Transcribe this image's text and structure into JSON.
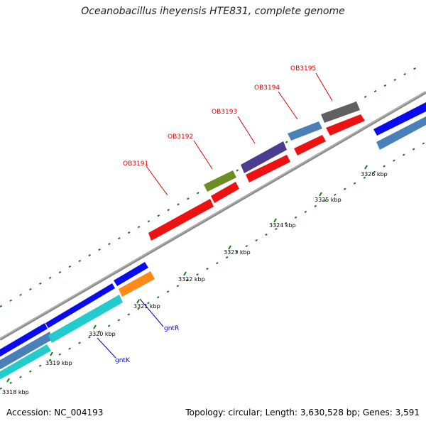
{
  "title": "Oceanobacillus iheyensis HTE831, complete genome",
  "footer": {
    "accession": "Accession: NC_004193",
    "summary": "Topology: circular; Length: 3,630,528 bp; Genes: 3,591"
  },
  "axis": {
    "unit": "kbp",
    "ticks": [
      "3318 kbp",
      "3319 kbp",
      "3320 kbp",
      "3321 kbp",
      "3322 kbp",
      "3323 kbp",
      "3324 kbp",
      "3325 kbp",
      "3326 kbp"
    ]
  },
  "genes": {
    "OB3191": "OB3191",
    "OB3192": "OB3192",
    "OB3193": "OB3193",
    "OB3194": "OB3194",
    "OB3195": "OB3195",
    "gntR": "gntR",
    "gntK": "gntK"
  },
  "colors": {
    "backbone": "#8c8c8c",
    "tick": "#1a7a1a",
    "red": "#ee1111",
    "blue": "#0a0aee",
    "steelblue": "#4a80b8",
    "cyan": "#22cccc",
    "orange": "#ff8a1a",
    "olive": "#6b8e23",
    "purple": "#4a3d8f",
    "gray": "#606060"
  }
}
